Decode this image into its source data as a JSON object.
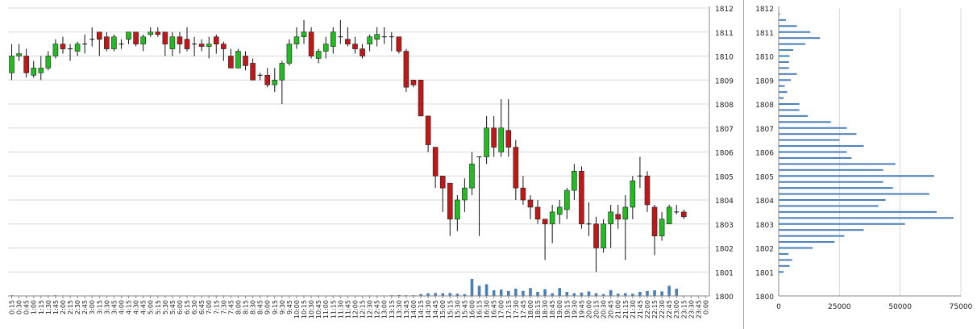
{
  "colors": {
    "up": "#22bb22",
    "down": "#c01818",
    "volume": "#4a7ebb",
    "grid": "#d8d8d8",
    "axis": "#888888"
  },
  "chart_data": [
    {
      "type": "candlestick",
      "y_ticks": [
        "1800",
        "1801",
        "1802",
        "1803",
        "1804",
        "1805",
        "1806",
        "1807",
        "1808",
        "1809",
        "1810",
        "1811",
        "1812"
      ],
      "ylim": [
        1800,
        1812
      ],
      "grid": true,
      "x_labels": [
        "0:15",
        "0:30",
        "0:45",
        "1:00",
        "1:15",
        "1:30",
        "1:45",
        "2:00",
        "2:15",
        "2:30",
        "2:45",
        "3:00",
        "3:15",
        "3:30",
        "3:45",
        "4:00",
        "4:15",
        "4:30",
        "4:45",
        "5:00",
        "5:15",
        "5:30",
        "5:45",
        "6:00",
        "6:15",
        "6:30",
        "6:45",
        "7:00",
        "7:15",
        "7:30",
        "7:45",
        "8:00",
        "8:15",
        "8:30",
        "8:45",
        "9:00",
        "9:15",
        "9:30",
        "9:45",
        "10:00",
        "10:15",
        "10:30",
        "10:45",
        "11:00",
        "11:15",
        "11:30",
        "11:45",
        "12:00",
        "12:15",
        "12:30",
        "12:45",
        "13:00",
        "13:15",
        "13:30",
        "13:45",
        "14:00",
        "14:15",
        "14:30",
        "14:45",
        "15:00",
        "15:15",
        "15:30",
        "15:45",
        "16:00",
        "16:15",
        "16:30",
        "16:45",
        "17:00",
        "17:15",
        "17:30",
        "17:45",
        "18:00",
        "18:15",
        "18:30",
        "18:45",
        "19:00",
        "19:15",
        "19:30",
        "19:45",
        "20:00",
        "20:15",
        "20:30",
        "20:45",
        "21:00",
        "21:15",
        "21:30",
        "21:45",
        "22:00",
        "22:15",
        "22:30",
        "22:45",
        "23:00",
        "23:15",
        "23:30",
        "23:45",
        "0:00"
      ],
      "candles": [
        {
          "o": 1809.3,
          "h": 1810.5,
          "l": 1809.0,
          "c": 1810.0
        },
        {
          "o": 1810.0,
          "h": 1810.5,
          "l": 1809.8,
          "c": 1810.1
        },
        {
          "o": 1810.0,
          "h": 1810.3,
          "l": 1809.1,
          "c": 1809.3
        },
        {
          "o": 1809.2,
          "h": 1809.8,
          "l": 1809.1,
          "c": 1809.5
        },
        {
          "o": 1809.3,
          "h": 1810.0,
          "l": 1809.0,
          "c": 1809.5
        },
        {
          "o": 1809.5,
          "h": 1810.2,
          "l": 1809.4,
          "c": 1810.0
        },
        {
          "o": 1810.0,
          "h": 1810.7,
          "l": 1809.9,
          "c": 1810.5
        },
        {
          "o": 1810.5,
          "h": 1810.8,
          "l": 1810.1,
          "c": 1810.3
        },
        {
          "o": 1810.3,
          "h": 1810.5,
          "l": 1809.8,
          "c": 1810.3
        },
        {
          "o": 1810.2,
          "h": 1810.6,
          "l": 1810.0,
          "c": 1810.5
        },
        {
          "o": 1810.5,
          "h": 1810.9,
          "l": 1810.1,
          "c": 1810.5
        },
        {
          "o": 1810.7,
          "h": 1811.2,
          "l": 1810.4,
          "c": 1810.7
        },
        {
          "o": 1811.0,
          "h": 1811.0,
          "l": 1810.0,
          "c": 1810.7
        },
        {
          "o": 1810.8,
          "h": 1811.0,
          "l": 1810.2,
          "c": 1810.3
        },
        {
          "o": 1810.3,
          "h": 1810.9,
          "l": 1810.2,
          "c": 1810.8
        },
        {
          "o": 1810.5,
          "h": 1810.7,
          "l": 1810.3,
          "c": 1810.5
        },
        {
          "o": 1810.7,
          "h": 1811.0,
          "l": 1810.5,
          "c": 1811.0
        },
        {
          "o": 1811.0,
          "h": 1811.0,
          "l": 1810.4,
          "c": 1810.5
        },
        {
          "o": 1810.5,
          "h": 1810.9,
          "l": 1810.2,
          "c": 1810.8
        },
        {
          "o": 1810.9,
          "h": 1811.2,
          "l": 1810.8,
          "c": 1811.0
        },
        {
          "o": 1811.0,
          "h": 1811.2,
          "l": 1810.8,
          "c": 1810.9
        },
        {
          "o": 1811.0,
          "h": 1811.0,
          "l": 1810.0,
          "c": 1810.5
        },
        {
          "o": 1810.3,
          "h": 1811.0,
          "l": 1810.0,
          "c": 1810.8
        },
        {
          "o": 1810.8,
          "h": 1811.0,
          "l": 1810.1,
          "c": 1810.5
        },
        {
          "o": 1810.7,
          "h": 1811.2,
          "l": 1810.2,
          "c": 1810.3
        },
        {
          "o": 1810.5,
          "h": 1810.8,
          "l": 1810.0,
          "c": 1810.5
        },
        {
          "o": 1810.5,
          "h": 1810.7,
          "l": 1810.2,
          "c": 1810.4
        },
        {
          "o": 1810.4,
          "h": 1810.8,
          "l": 1809.9,
          "c": 1810.5
        },
        {
          "o": 1810.8,
          "h": 1810.9,
          "l": 1810.1,
          "c": 1810.5
        },
        {
          "o": 1810.5,
          "h": 1810.6,
          "l": 1809.8,
          "c": 1810.3
        },
        {
          "o": 1810.0,
          "h": 1810.3,
          "l": 1809.5,
          "c": 1809.5
        },
        {
          "o": 1809.5,
          "h": 1810.3,
          "l": 1809.5,
          "c": 1810.2
        },
        {
          "o": 1810.0,
          "h": 1810.2,
          "l": 1809.4,
          "c": 1809.6
        },
        {
          "o": 1809.7,
          "h": 1809.9,
          "l": 1809.0,
          "c": 1809.0
        },
        {
          "o": 1809.2,
          "h": 1809.3,
          "l": 1809.0,
          "c": 1809.2
        },
        {
          "o": 1809.2,
          "h": 1809.5,
          "l": 1808.7,
          "c": 1808.8
        },
        {
          "o": 1808.8,
          "h": 1809.5,
          "l": 1808.5,
          "c": 1809.0
        },
        {
          "o": 1809.0,
          "h": 1809.8,
          "l": 1808.0,
          "c": 1809.7
        },
        {
          "o": 1809.7,
          "h": 1810.7,
          "l": 1809.6,
          "c": 1810.5
        },
        {
          "o": 1810.5,
          "h": 1811.2,
          "l": 1810.3,
          "c": 1810.8
        },
        {
          "o": 1810.8,
          "h": 1811.5,
          "l": 1810.5,
          "c": 1811.0
        },
        {
          "o": 1811.0,
          "h": 1811.2,
          "l": 1809.9,
          "c": 1810.0
        },
        {
          "o": 1809.9,
          "h": 1810.3,
          "l": 1809.7,
          "c": 1810.2
        },
        {
          "o": 1810.2,
          "h": 1810.8,
          "l": 1809.9,
          "c": 1810.5
        },
        {
          "o": 1810.4,
          "h": 1811.2,
          "l": 1810.1,
          "c": 1811.0
        },
        {
          "o": 1810.8,
          "h": 1811.5,
          "l": 1810.5,
          "c": 1810.8
        },
        {
          "o": 1810.7,
          "h": 1811.2,
          "l": 1810.4,
          "c": 1810.5
        },
        {
          "o": 1810.5,
          "h": 1810.8,
          "l": 1810.1,
          "c": 1810.3
        },
        {
          "o": 1810.3,
          "h": 1810.5,
          "l": 1809.9,
          "c": 1810.0
        },
        {
          "o": 1810.5,
          "h": 1810.9,
          "l": 1810.2,
          "c": 1810.8
        },
        {
          "o": 1810.7,
          "h": 1811.2,
          "l": 1810.4,
          "c": 1810.9
        },
        {
          "o": 1810.8,
          "h": 1811.2,
          "l": 1810.5,
          "c": 1810.8
        },
        {
          "o": 1810.8,
          "h": 1811.0,
          "l": 1810.2,
          "c": 1810.8
        },
        {
          "o": 1810.8,
          "h": 1810.8,
          "l": 1810.1,
          "c": 1810.2
        },
        {
          "o": 1810.2,
          "h": 1810.3,
          "l": 1808.5,
          "c": 1808.7
        },
        {
          "o": 1809.0,
          "h": 1809.0,
          "l": 1808.7,
          "c": 1808.8
        },
        {
          "o": 1809.0,
          "h": 1809.0,
          "l": 1807.5,
          "c": 1807.5
        },
        {
          "o": 1807.5,
          "h": 1807.5,
          "l": 1806.0,
          "c": 1806.3
        },
        {
          "o": 1806.2,
          "h": 1806.2,
          "l": 1804.5,
          "c": 1805.0
        },
        {
          "o": 1805.0,
          "h": 1805.0,
          "l": 1803.5,
          "c": 1804.5
        },
        {
          "o": 1804.7,
          "h": 1804.7,
          "l": 1802.5,
          "c": 1803.2
        },
        {
          "o": 1803.2,
          "h": 1804.2,
          "l": 1802.7,
          "c": 1804.0
        },
        {
          "o": 1804.0,
          "h": 1804.9,
          "l": 1803.5,
          "c": 1804.5
        },
        {
          "o": 1804.5,
          "h": 1806.0,
          "l": 1804.2,
          "c": 1805.5
        },
        {
          "o": 1805.8,
          "h": 1805.8,
          "l": 1802.5,
          "c": 1805.8
        },
        {
          "o": 1805.8,
          "h": 1807.5,
          "l": 1805.5,
          "c": 1807.0
        },
        {
          "o": 1807.0,
          "h": 1807.5,
          "l": 1805.8,
          "c": 1806.2
        },
        {
          "o": 1806.0,
          "h": 1808.2,
          "l": 1805.8,
          "c": 1807.0
        },
        {
          "o": 1806.9,
          "h": 1808.2,
          "l": 1805.8,
          "c": 1806.2
        },
        {
          "o": 1806.2,
          "h": 1806.5,
          "l": 1804.0,
          "c": 1804.5
        },
        {
          "o": 1804.5,
          "h": 1805.0,
          "l": 1803.8,
          "c": 1804.0
        },
        {
          "o": 1804.0,
          "h": 1804.2,
          "l": 1803.2,
          "c": 1803.7
        },
        {
          "o": 1803.7,
          "h": 1804.0,
          "l": 1803.0,
          "c": 1803.2
        },
        {
          "o": 1803.2,
          "h": 1803.2,
          "l": 1801.5,
          "c": 1803.0
        },
        {
          "o": 1803.0,
          "h": 1803.8,
          "l": 1802.2,
          "c": 1803.5
        },
        {
          "o": 1803.4,
          "h": 1804.0,
          "l": 1803.0,
          "c": 1803.7
        },
        {
          "o": 1803.6,
          "h": 1804.5,
          "l": 1803.2,
          "c": 1804.4
        },
        {
          "o": 1804.4,
          "h": 1805.5,
          "l": 1804.0,
          "c": 1805.2
        },
        {
          "o": 1805.2,
          "h": 1805.4,
          "l": 1802.8,
          "c": 1803.0
        },
        {
          "o": 1803.0,
          "h": 1803.9,
          "l": 1802.5,
          "c": 1803.0
        },
        {
          "o": 1803.0,
          "h": 1803.3,
          "l": 1801.0,
          "c": 1802.0
        },
        {
          "o": 1802.0,
          "h": 1803.2,
          "l": 1801.8,
          "c": 1803.0
        },
        {
          "o": 1803.0,
          "h": 1803.8,
          "l": 1802.0,
          "c": 1803.5
        },
        {
          "o": 1803.4,
          "h": 1803.8,
          "l": 1802.8,
          "c": 1803.2
        },
        {
          "o": 1803.2,
          "h": 1804.2,
          "l": 1801.5,
          "c": 1803.7
        },
        {
          "o": 1803.7,
          "h": 1805.0,
          "l": 1803.2,
          "c": 1804.8
        },
        {
          "o": 1805.0,
          "h": 1805.8,
          "l": 1804.5,
          "c": 1805.0
        },
        {
          "o": 1805.0,
          "h": 1805.2,
          "l": 1803.5,
          "c": 1803.8
        },
        {
          "o": 1803.7,
          "h": 1803.8,
          "l": 1801.7,
          "c": 1802.5
        },
        {
          "o": 1802.5,
          "h": 1803.5,
          "l": 1802.3,
          "c": 1803.2
        },
        {
          "o": 1803.0,
          "h": 1803.8,
          "l": 1803.0,
          "c": 1803.7
        },
        {
          "o": 1803.5,
          "h": 1803.8,
          "l": 1803.4,
          "c": 1803.5
        },
        {
          "o": 1803.5,
          "h": 1803.6,
          "l": 1803.2,
          "c": 1803.3
        },
        null,
        null,
        null
      ],
      "volume": [
        0.03,
        0.02,
        0.02,
        0.02,
        0.02,
        0.02,
        0.03,
        0.02,
        0.02,
        0.02,
        0.02,
        0.02,
        0.02,
        0.02,
        0.02,
        0.02,
        0.02,
        0.02,
        0.02,
        0.02,
        0.02,
        0.02,
        0.02,
        0.02,
        0.02,
        0.02,
        0.02,
        0.02,
        0.02,
        0.02,
        0.02,
        0.02,
        0.02,
        0.02,
        0.02,
        0.02,
        0.02,
        0.02,
        0.02,
        0.02,
        0.02,
        0.02,
        0.02,
        0.02,
        0.02,
        0.02,
        0.02,
        0.02,
        0.02,
        0.02,
        0.02,
        0.02,
        0.03,
        0.04,
        0.03,
        0.03,
        0.08,
        0.12,
        0.13,
        0.12,
        0.13,
        0.1,
        0.08,
        0.75,
        0.45,
        0.52,
        0.25,
        0.28,
        0.22,
        0.32,
        0.22,
        0.35,
        0.18,
        0.3,
        0.12,
        0.35,
        0.18,
        0.12,
        0.15,
        0.2,
        0.12,
        0.08,
        0.26,
        0.1,
        0.12,
        0.1,
        0.18,
        0.22,
        0.25,
        0.2,
        0.45,
        0.32,
        0.02,
        0.02,
        0.02,
        0.0
      ]
    },
    {
      "type": "bar",
      "orientation": "horizontal",
      "y_ticks": [
        "1800",
        "1801",
        "1802",
        "1803",
        "1804",
        "1805",
        "1806",
        "1807",
        "1808",
        "1809",
        "1810",
        "1811",
        "1812"
      ],
      "x_ticks": [
        "0",
        "25000",
        "50000",
        "75000"
      ],
      "xlim": [
        0,
        75000
      ],
      "ylim": [
        1800,
        1812
      ],
      "grid": true,
      "prices": [
        1801.0,
        1801.25,
        1801.5,
        1801.75,
        1802.0,
        1802.25,
        1802.5,
        1802.75,
        1803.0,
        1803.25,
        1803.5,
        1803.75,
        1804.0,
        1804.25,
        1804.5,
        1804.75,
        1805.0,
        1805.25,
        1805.5,
        1805.75,
        1806.0,
        1806.25,
        1806.5,
        1806.75,
        1807.0,
        1807.25,
        1807.5,
        1807.75,
        1808.0,
        1808.25,
        1808.5,
        1808.75,
        1809.0,
        1809.25,
        1809.5,
        1809.75,
        1810.0,
        1810.25,
        1810.5,
        1810.75,
        1811.0,
        1811.25,
        1811.5,
        1811.75
      ],
      "values": [
        2000,
        4500,
        5500,
        4000,
        14000,
        23000,
        27000,
        35000,
        52000,
        72000,
        65000,
        41000,
        44000,
        62000,
        47000,
        43000,
        64000,
        43000,
        48000,
        30000,
        28000,
        35000,
        25000,
        32000,
        28000,
        21500,
        12000,
        8500,
        8500,
        2000,
        3500,
        2500,
        5000,
        7500,
        4200,
        4200,
        4500,
        6000,
        11000,
        17000,
        13000,
        7500,
        3000,
        500
      ]
    }
  ]
}
